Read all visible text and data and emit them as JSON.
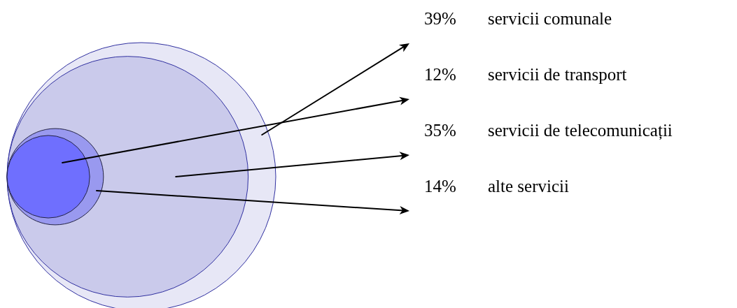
{
  "chart_data": {
    "type": "other",
    "categories": [
      "servicii comunale",
      "servicii de transport",
      "servicii de telecomunicații",
      "alte servicii"
    ],
    "values": [
      39,
      12,
      35,
      14
    ],
    "value_labels": [
      "39%",
      "12%",
      "35%",
      "14%"
    ],
    "colors": [
      "#e4e4f5",
      "#6a6aff",
      "#c6c6ea",
      "#9494f0"
    ]
  }
}
